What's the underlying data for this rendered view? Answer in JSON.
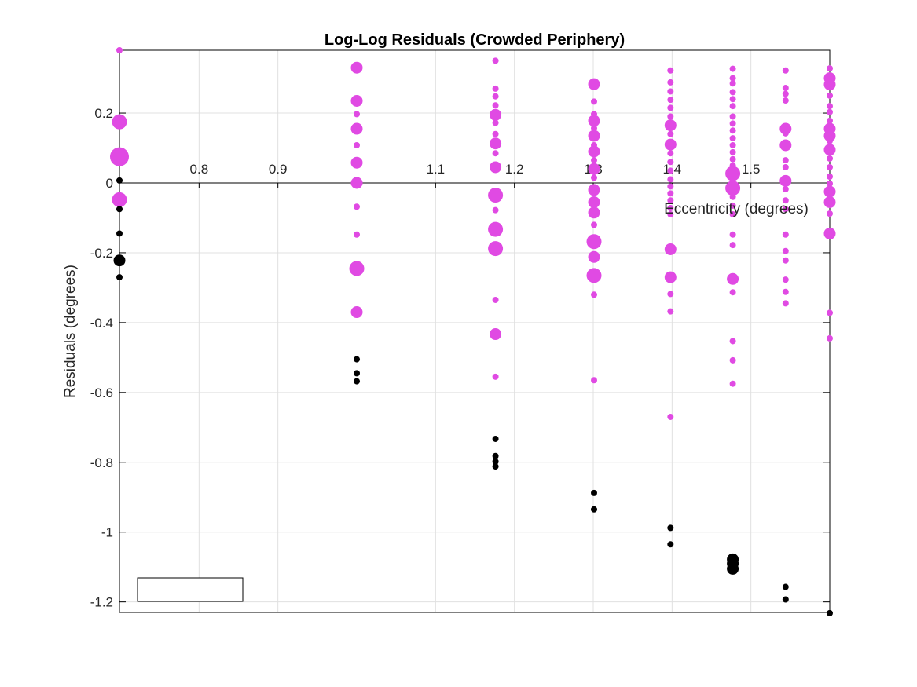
{
  "chart_data": {
    "type": "scatter",
    "title": "Log-Log Residuals (Crowded Periphery)",
    "xlabel": "Eccentricity (degrees)",
    "ylabel": "Residuals (degrees)",
    "xlim": [
      0.699,
      1.6
    ],
    "ylim": [
      -1.23,
      0.38
    ],
    "xticks": [
      0.8,
      0.9,
      1.1,
      1.2,
      1.3,
      1.4,
      1.5
    ],
    "yticks": [
      0.2,
      0,
      -0.2,
      -0.4,
      -0.6,
      -0.8,
      -1,
      -1.2
    ],
    "x_axis_location": "origin",
    "grid": true,
    "legend": {
      "placement": "bottom-left",
      "entries": []
    },
    "colors": {
      "magenta": "#e04ae3",
      "black": "#000000",
      "grid": "#e0e0e0",
      "axes": "#000000"
    },
    "series": [
      {
        "color": "magenta",
        "points": [
          {
            "x": 0.699,
            "y": 0.38,
            "s": 1
          },
          {
            "x": 0.699,
            "y": 0.175,
            "s": 3
          },
          {
            "x": 0.699,
            "y": 0.075,
            "s": 4
          },
          {
            "x": 0.699,
            "y": -0.048,
            "s": 3
          },
          {
            "x": 1.0,
            "y": 0.33,
            "s": 2
          },
          {
            "x": 1.0,
            "y": 0.235,
            "s": 2
          },
          {
            "x": 1.0,
            "y": 0.197,
            "s": 1
          },
          {
            "x": 1.0,
            "y": 0.155,
            "s": 2
          },
          {
            "x": 1.0,
            "y": 0.108,
            "s": 1
          },
          {
            "x": 1.0,
            "y": 0.058,
            "s": 2
          },
          {
            "x": 1.0,
            "y": 0.0,
            "s": 2
          },
          {
            "x": 1.0,
            "y": -0.068,
            "s": 1
          },
          {
            "x": 1.0,
            "y": -0.148,
            "s": 1
          },
          {
            "x": 1.0,
            "y": -0.245,
            "s": 3
          },
          {
            "x": 1.0,
            "y": -0.37,
            "s": 2
          },
          {
            "x": 1.176,
            "y": 0.35,
            "s": 1
          },
          {
            "x": 1.176,
            "y": 0.27,
            "s": 1
          },
          {
            "x": 1.176,
            "y": 0.248,
            "s": 1
          },
          {
            "x": 1.176,
            "y": 0.222,
            "s": 1
          },
          {
            "x": 1.176,
            "y": 0.195,
            "s": 2
          },
          {
            "x": 1.176,
            "y": 0.172,
            "s": 1
          },
          {
            "x": 1.176,
            "y": 0.14,
            "s": 1
          },
          {
            "x": 1.176,
            "y": 0.113,
            "s": 2
          },
          {
            "x": 1.176,
            "y": 0.085,
            "s": 1
          },
          {
            "x": 1.176,
            "y": 0.045,
            "s": 2
          },
          {
            "x": 1.176,
            "y": -0.035,
            "s": 3
          },
          {
            "x": 1.176,
            "y": -0.078,
            "s": 1
          },
          {
            "x": 1.176,
            "y": -0.133,
            "s": 3
          },
          {
            "x": 1.176,
            "y": -0.188,
            "s": 3
          },
          {
            "x": 1.176,
            "y": -0.335,
            "s": 1
          },
          {
            "x": 1.176,
            "y": -0.433,
            "s": 2
          },
          {
            "x": 1.176,
            "y": -0.555,
            "s": 1
          },
          {
            "x": 1.301,
            "y": 0.283,
            "s": 2
          },
          {
            "x": 1.301,
            "y": 0.233,
            "s": 1
          },
          {
            "x": 1.301,
            "y": 0.197,
            "s": 1
          },
          {
            "x": 1.301,
            "y": 0.178,
            "s": 2
          },
          {
            "x": 1.301,
            "y": 0.157,
            "s": 1
          },
          {
            "x": 1.301,
            "y": 0.135,
            "s": 2
          },
          {
            "x": 1.301,
            "y": 0.108,
            "s": 1
          },
          {
            "x": 1.301,
            "y": 0.09,
            "s": 2
          },
          {
            "x": 1.301,
            "y": 0.065,
            "s": 1
          },
          {
            "x": 1.301,
            "y": 0.04,
            "s": 2
          },
          {
            "x": 1.301,
            "y": 0.015,
            "s": 1
          },
          {
            "x": 1.301,
            "y": -0.02,
            "s": 2
          },
          {
            "x": 1.301,
            "y": -0.055,
            "s": 2
          },
          {
            "x": 1.301,
            "y": -0.085,
            "s": 2
          },
          {
            "x": 1.301,
            "y": -0.12,
            "s": 1
          },
          {
            "x": 1.301,
            "y": -0.168,
            "s": 3
          },
          {
            "x": 1.301,
            "y": -0.212,
            "s": 2
          },
          {
            "x": 1.301,
            "y": -0.265,
            "s": 3
          },
          {
            "x": 1.301,
            "y": -0.32,
            "s": 1
          },
          {
            "x": 1.301,
            "y": -0.565,
            "s": 1
          },
          {
            "x": 1.398,
            "y": 0.322,
            "s": 1
          },
          {
            "x": 1.398,
            "y": 0.288,
            "s": 1
          },
          {
            "x": 1.398,
            "y": 0.262,
            "s": 1
          },
          {
            "x": 1.398,
            "y": 0.238,
            "s": 1
          },
          {
            "x": 1.398,
            "y": 0.215,
            "s": 1
          },
          {
            "x": 1.398,
            "y": 0.19,
            "s": 1
          },
          {
            "x": 1.398,
            "y": 0.165,
            "s": 2
          },
          {
            "x": 1.398,
            "y": 0.14,
            "s": 1
          },
          {
            "x": 1.398,
            "y": 0.11,
            "s": 2
          },
          {
            "x": 1.398,
            "y": 0.085,
            "s": 1
          },
          {
            "x": 1.398,
            "y": 0.06,
            "s": 1
          },
          {
            "x": 1.398,
            "y": 0.035,
            "s": 1
          },
          {
            "x": 1.398,
            "y": 0.01,
            "s": 1
          },
          {
            "x": 1.398,
            "y": -0.01,
            "s": 1
          },
          {
            "x": 1.398,
            "y": -0.03,
            "s": 1
          },
          {
            "x": 1.398,
            "y": -0.05,
            "s": 1
          },
          {
            "x": 1.398,
            "y": -0.072,
            "s": 1
          },
          {
            "x": 1.398,
            "y": -0.09,
            "s": 1
          },
          {
            "x": 1.398,
            "y": -0.19,
            "s": 2
          },
          {
            "x": 1.398,
            "y": -0.27,
            "s": 2
          },
          {
            "x": 1.398,
            "y": -0.318,
            "s": 1
          },
          {
            "x": 1.398,
            "y": -0.368,
            "s": 1
          },
          {
            "x": 1.398,
            "y": -0.67,
            "s": 1
          },
          {
            "x": 1.477,
            "y": 0.327,
            "s": 1
          },
          {
            "x": 1.477,
            "y": 0.3,
            "s": 1
          },
          {
            "x": 1.477,
            "y": 0.285,
            "s": 1
          },
          {
            "x": 1.477,
            "y": 0.26,
            "s": 1
          },
          {
            "x": 1.477,
            "y": 0.24,
            "s": 1
          },
          {
            "x": 1.477,
            "y": 0.22,
            "s": 1
          },
          {
            "x": 1.477,
            "y": 0.19,
            "s": 1
          },
          {
            "x": 1.477,
            "y": 0.17,
            "s": 1
          },
          {
            "x": 1.477,
            "y": 0.15,
            "s": 1
          },
          {
            "x": 1.477,
            "y": 0.128,
            "s": 1
          },
          {
            "x": 1.477,
            "y": 0.108,
            "s": 1
          },
          {
            "x": 1.477,
            "y": 0.088,
            "s": 1
          },
          {
            "x": 1.477,
            "y": 0.068,
            "s": 1
          },
          {
            "x": 1.477,
            "y": 0.05,
            "s": 1
          },
          {
            "x": 1.477,
            "y": 0.027,
            "s": 3
          },
          {
            "x": 1.477,
            "y": 0.005,
            "s": 1
          },
          {
            "x": 1.477,
            "y": -0.015,
            "s": 3
          },
          {
            "x": 1.477,
            "y": -0.04,
            "s": 1
          },
          {
            "x": 1.477,
            "y": -0.065,
            "s": 1
          },
          {
            "x": 1.477,
            "y": -0.09,
            "s": 1
          },
          {
            "x": 1.477,
            "y": -0.148,
            "s": 1
          },
          {
            "x": 1.477,
            "y": -0.178,
            "s": 1
          },
          {
            "x": 1.477,
            "y": -0.275,
            "s": 2
          },
          {
            "x": 1.477,
            "y": -0.313,
            "s": 1
          },
          {
            "x": 1.477,
            "y": -0.453,
            "s": 1
          },
          {
            "x": 1.477,
            "y": -0.508,
            "s": 1
          },
          {
            "x": 1.477,
            "y": -0.575,
            "s": 1
          },
          {
            "x": 1.544,
            "y": 0.322,
            "s": 1
          },
          {
            "x": 1.544,
            "y": 0.272,
            "s": 1
          },
          {
            "x": 1.544,
            "y": 0.255,
            "s": 1
          },
          {
            "x": 1.544,
            "y": 0.236,
            "s": 1
          },
          {
            "x": 1.544,
            "y": 0.155,
            "s": 2
          },
          {
            "x": 1.544,
            "y": 0.142,
            "s": 1
          },
          {
            "x": 1.544,
            "y": 0.108,
            "s": 2
          },
          {
            "x": 1.544,
            "y": 0.065,
            "s": 1
          },
          {
            "x": 1.544,
            "y": 0.045,
            "s": 1
          },
          {
            "x": 1.544,
            "y": 0.006,
            "s": 2
          },
          {
            "x": 1.544,
            "y": -0.018,
            "s": 1
          },
          {
            "x": 1.544,
            "y": -0.05,
            "s": 1
          },
          {
            "x": 1.544,
            "y": -0.075,
            "s": 1
          },
          {
            "x": 1.544,
            "y": -0.148,
            "s": 1
          },
          {
            "x": 1.544,
            "y": -0.195,
            "s": 1
          },
          {
            "x": 1.544,
            "y": -0.222,
            "s": 1
          },
          {
            "x": 1.544,
            "y": -0.277,
            "s": 1
          },
          {
            "x": 1.544,
            "y": -0.312,
            "s": 1
          },
          {
            "x": 1.544,
            "y": -0.345,
            "s": 1
          },
          {
            "x": 1.6,
            "y": 0.328,
            "s": 1
          },
          {
            "x": 1.6,
            "y": 0.3,
            "s": 2
          },
          {
            "x": 1.6,
            "y": 0.282,
            "s": 2
          },
          {
            "x": 1.6,
            "y": 0.25,
            "s": 1
          },
          {
            "x": 1.6,
            "y": 0.22,
            "s": 1
          },
          {
            "x": 1.6,
            "y": 0.203,
            "s": 1
          },
          {
            "x": 1.6,
            "y": 0.178,
            "s": 1
          },
          {
            "x": 1.6,
            "y": 0.155,
            "s": 2
          },
          {
            "x": 1.6,
            "y": 0.135,
            "s": 2
          },
          {
            "x": 1.6,
            "y": 0.12,
            "s": 1
          },
          {
            "x": 1.6,
            "y": 0.095,
            "s": 2
          },
          {
            "x": 1.6,
            "y": 0.07,
            "s": 1
          },
          {
            "x": 1.6,
            "y": 0.045,
            "s": 1
          },
          {
            "x": 1.6,
            "y": 0.018,
            "s": 1
          },
          {
            "x": 1.6,
            "y": -0.002,
            "s": 1
          },
          {
            "x": 1.6,
            "y": -0.025,
            "s": 2
          },
          {
            "x": 1.6,
            "y": -0.055,
            "s": 2
          },
          {
            "x": 1.6,
            "y": -0.088,
            "s": 1
          },
          {
            "x": 1.6,
            "y": -0.145,
            "s": 2
          },
          {
            "x": 1.6,
            "y": -0.372,
            "s": 1
          },
          {
            "x": 1.6,
            "y": -0.445,
            "s": 1
          }
        ]
      },
      {
        "color": "black",
        "points": [
          {
            "x": 0.699,
            "y": 0.007,
            "s": 1
          },
          {
            "x": 0.699,
            "y": -0.075,
            "s": 1
          },
          {
            "x": 0.699,
            "y": -0.145,
            "s": 1
          },
          {
            "x": 0.699,
            "y": -0.222,
            "s": 2
          },
          {
            "x": 0.699,
            "y": -0.27,
            "s": 1
          },
          {
            "x": 1.0,
            "y": -0.505,
            "s": 1
          },
          {
            "x": 1.0,
            "y": -0.545,
            "s": 1
          },
          {
            "x": 1.0,
            "y": -0.568,
            "s": 1
          },
          {
            "x": 1.176,
            "y": -0.733,
            "s": 1
          },
          {
            "x": 1.176,
            "y": -0.782,
            "s": 1
          },
          {
            "x": 1.176,
            "y": -0.798,
            "s": 1
          },
          {
            "x": 1.176,
            "y": -0.812,
            "s": 1
          },
          {
            "x": 1.301,
            "y": -0.888,
            "s": 1
          },
          {
            "x": 1.301,
            "y": -0.935,
            "s": 1
          },
          {
            "x": 1.398,
            "y": -0.988,
            "s": 1
          },
          {
            "x": 1.398,
            "y": -1.035,
            "s": 1
          },
          {
            "x": 1.477,
            "y": -1.078,
            "s": 2
          },
          {
            "x": 1.477,
            "y": -1.09,
            "s": 2
          },
          {
            "x": 1.477,
            "y": -1.105,
            "s": 2
          },
          {
            "x": 1.544,
            "y": -1.157,
            "s": 1
          },
          {
            "x": 1.544,
            "y": -1.193,
            "s": 1
          },
          {
            "x": 1.6,
            "y": -1.232,
            "s": 1
          }
        ]
      }
    ]
  }
}
